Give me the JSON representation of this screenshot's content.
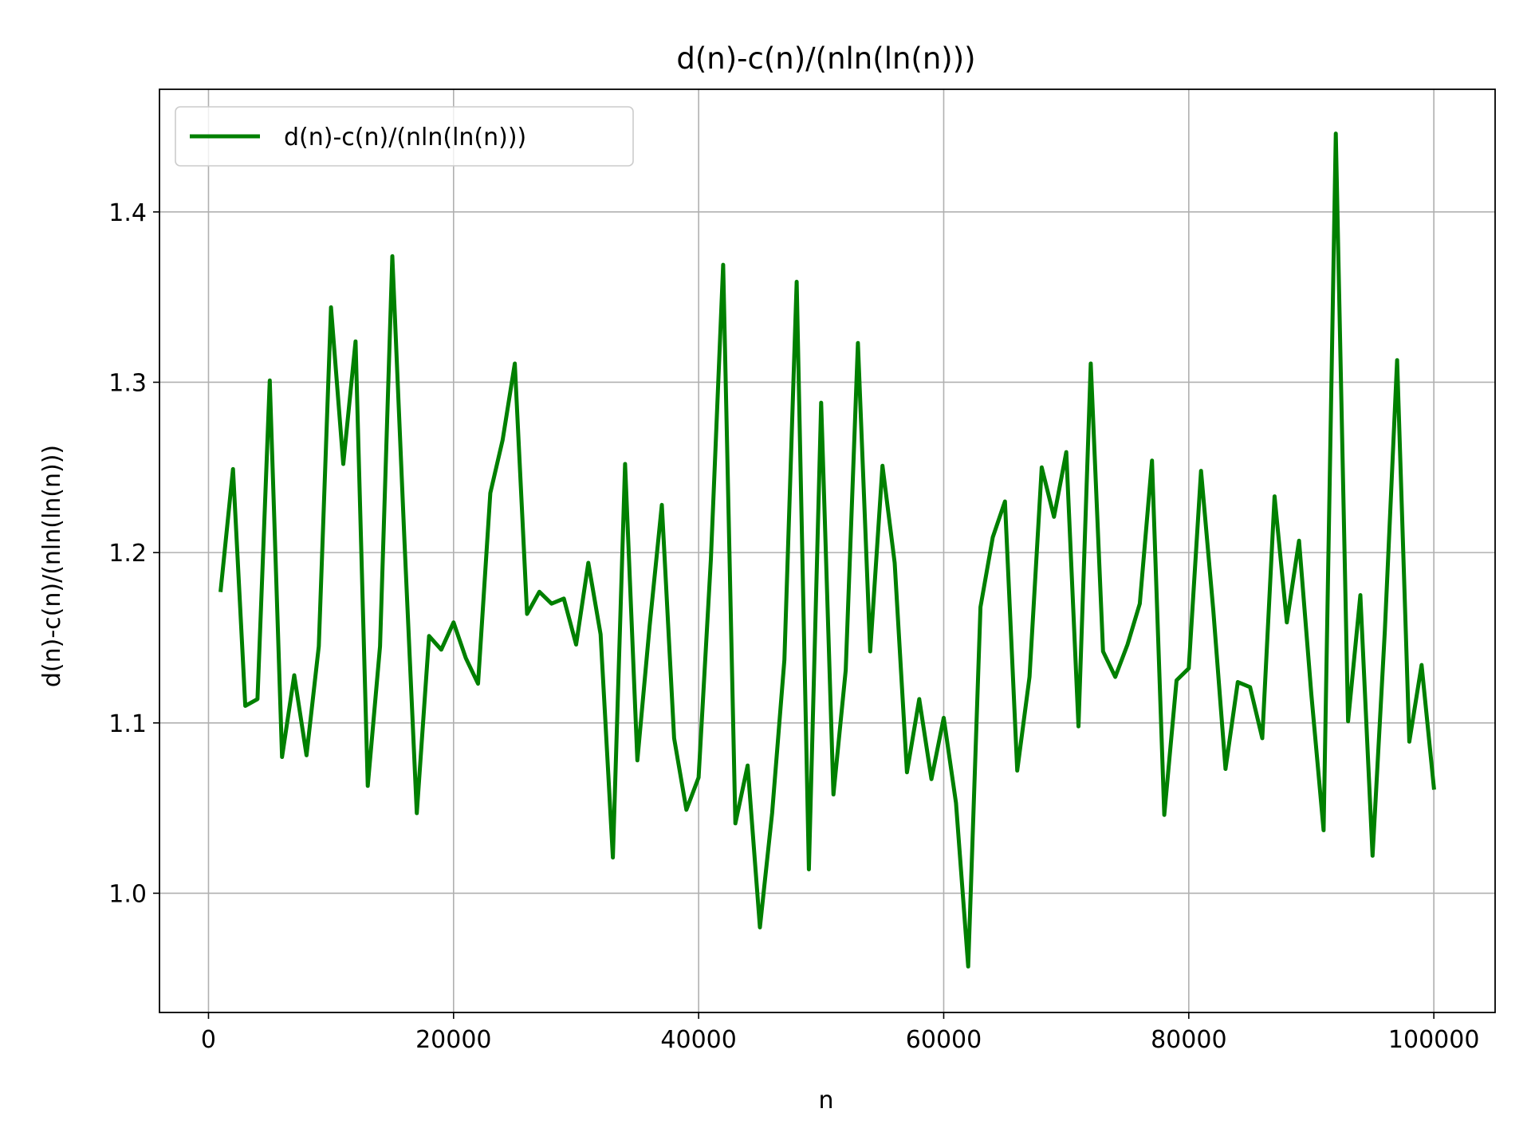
{
  "chart_data": {
    "type": "line",
    "title": "d(n)-c(n)/(nln(ln(n)))",
    "xlabel": "n",
    "ylabel": "d(n)-c(n)/(nln(ln(n)))",
    "xlim": [
      -4000,
      105000
    ],
    "ylim": [
      0.93,
      1.472
    ],
    "xticks": [
      0,
      20000,
      40000,
      60000,
      80000,
      100000
    ],
    "xtick_labels": [
      "0",
      "20000",
      "40000",
      "60000",
      "80000",
      "100000"
    ],
    "yticks": [
      1.0,
      1.1,
      1.2,
      1.3,
      1.4
    ],
    "ytick_labels": [
      "1.0",
      "1.1",
      "1.2",
      "1.3",
      "1.4"
    ],
    "grid": true,
    "legend_position": "top-left",
    "series": [
      {
        "name": "d(n)-c(n)/(nln(ln(n)))",
        "color": "#008000",
        "x": [
          1000,
          2000,
          3000,
          4000,
          5000,
          6000,
          7000,
          8000,
          9000,
          10000,
          11000,
          12000,
          13000,
          14000,
          15000,
          16000,
          17000,
          18000,
          19000,
          20000,
          21000,
          22000,
          23000,
          24000,
          25000,
          26000,
          27000,
          28000,
          29000,
          30000,
          31000,
          32000,
          33000,
          34000,
          35000,
          36000,
          37000,
          38000,
          39000,
          40000,
          41000,
          42000,
          43000,
          44000,
          45000,
          46000,
          47000,
          48000,
          49000,
          50000,
          51000,
          52000,
          53000,
          54000,
          55000,
          56000,
          57000,
          58000,
          59000,
          60000,
          61000,
          62000,
          63000,
          64000,
          65000,
          66000,
          67000,
          68000,
          69000,
          70000,
          71000,
          72000,
          73000,
          74000,
          75000,
          76000,
          77000,
          78000,
          79000,
          80000,
          81000,
          82000,
          83000,
          84000,
          85000,
          86000,
          87000,
          88000,
          89000,
          90000,
          91000,
          92000,
          93000,
          94000,
          95000,
          96000,
          97000,
          98000,
          99000,
          100000
        ],
        "y": [
          1.178,
          1.249,
          1.11,
          1.114,
          1.301,
          1.08,
          1.128,
          1.081,
          1.145,
          1.344,
          1.252,
          1.324,
          1.063,
          1.145,
          1.374,
          1.206,
          1.047,
          1.151,
          1.143,
          1.159,
          1.138,
          1.123,
          1.235,
          1.266,
          1.311,
          1.164,
          1.177,
          1.17,
          1.173,
          1.146,
          1.194,
          1.152,
          1.021,
          1.252,
          1.078,
          1.157,
          1.228,
          1.091,
          1.049,
          1.068,
          1.196,
          1.369,
          1.041,
          1.075,
          0.98,
          1.047,
          1.137,
          1.359,
          1.014,
          1.288,
          1.058,
          1.131,
          1.323,
          1.142,
          1.251,
          1.194,
          1.071,
          1.114,
          1.067,
          1.103,
          1.053,
          0.957,
          1.168,
          1.209,
          1.23,
          1.072,
          1.127,
          1.25,
          1.221,
          1.259,
          1.098,
          1.311,
          1.142,
          1.127,
          1.146,
          1.17,
          1.254,
          1.046,
          1.125,
          1.132,
          1.248,
          1.166,
          1.073,
          1.124,
          1.121,
          1.091,
          1.233,
          1.159,
          1.207,
          1.117,
          1.037,
          1.446,
          1.101,
          1.175,
          1.022,
          1.154,
          1.313,
          1.089,
          1.134,
          1.062
        ]
      }
    ]
  }
}
